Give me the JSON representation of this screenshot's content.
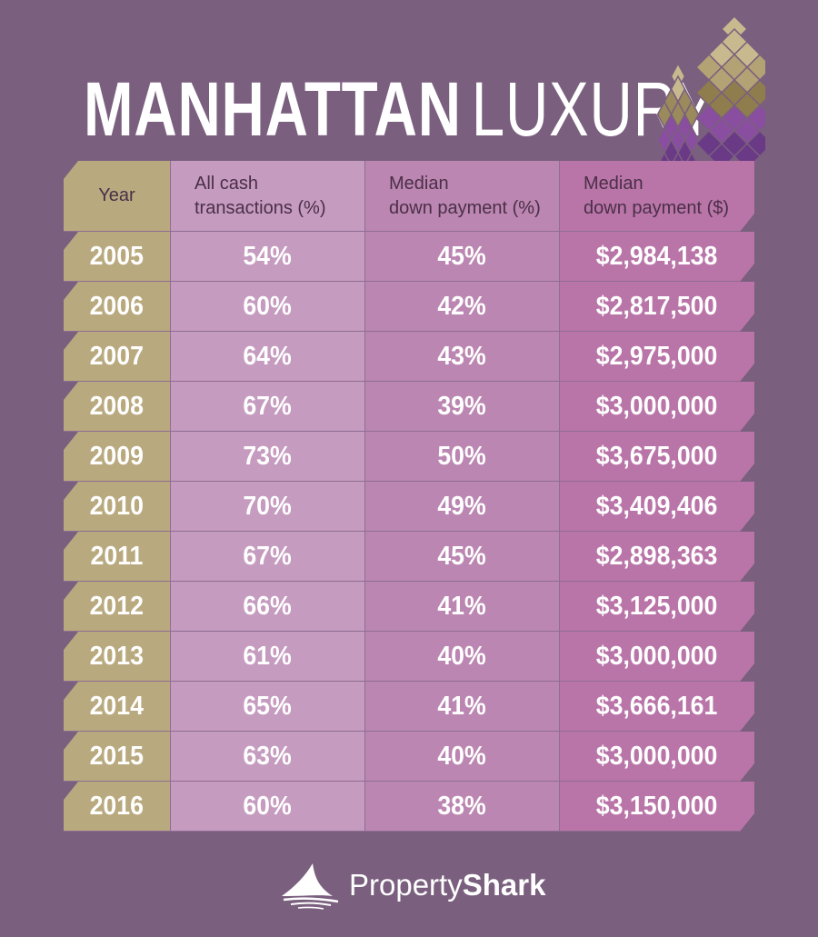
{
  "title": {
    "bold": "MANHATTAN",
    "light": "LUXURY"
  },
  "columns": {
    "year": "Year",
    "cash": "All cash\ntransactions (%)",
    "pct": "Median\ndown payment (%)",
    "usd": "Median\ndown payment ($)"
  },
  "rows": [
    {
      "year": "2005",
      "cash": "54%",
      "pct": "45%",
      "usd": "$2,984,138"
    },
    {
      "year": "2006",
      "cash": "60%",
      "pct": "42%",
      "usd": "$2,817,500"
    },
    {
      "year": "2007",
      "cash": "64%",
      "pct": "43%",
      "usd": "$2,975,000"
    },
    {
      "year": "2008",
      "cash": "67%",
      "pct": "39%",
      "usd": "$3,000,000"
    },
    {
      "year": "2009",
      "cash": "73%",
      "pct": "50%",
      "usd": "$3,675,000"
    },
    {
      "year": "2010",
      "cash": "70%",
      "pct": "49%",
      "usd": "$3,409,406"
    },
    {
      "year": "2011",
      "cash": "67%",
      "pct": "45%",
      "usd": "$2,898,363"
    },
    {
      "year": "2012",
      "cash": "66%",
      "pct": "41%",
      "usd": "$3,125,000"
    },
    {
      "year": "2013",
      "cash": "61%",
      "pct": "40%",
      "usd": "$3,000,000"
    },
    {
      "year": "2014",
      "cash": "65%",
      "pct": "41%",
      "usd": "$3,666,161"
    },
    {
      "year": "2015",
      "cash": "63%",
      "pct": "40%",
      "usd": "$3,000,000"
    },
    {
      "year": "2016",
      "cash": "60%",
      "pct": "38%",
      "usd": "$3,150,000"
    }
  ],
  "brand": {
    "part1": "Property",
    "part2": "Shark",
    "icon": "shark-fin-icon"
  },
  "colors": {
    "background": "#7a5f7e",
    "year_col": "#b9a97e",
    "cash_col": "#c59bbf",
    "pct_col": "#bb86b1",
    "usd_col": "#b975a8",
    "header_text": "#4a2f48"
  }
}
